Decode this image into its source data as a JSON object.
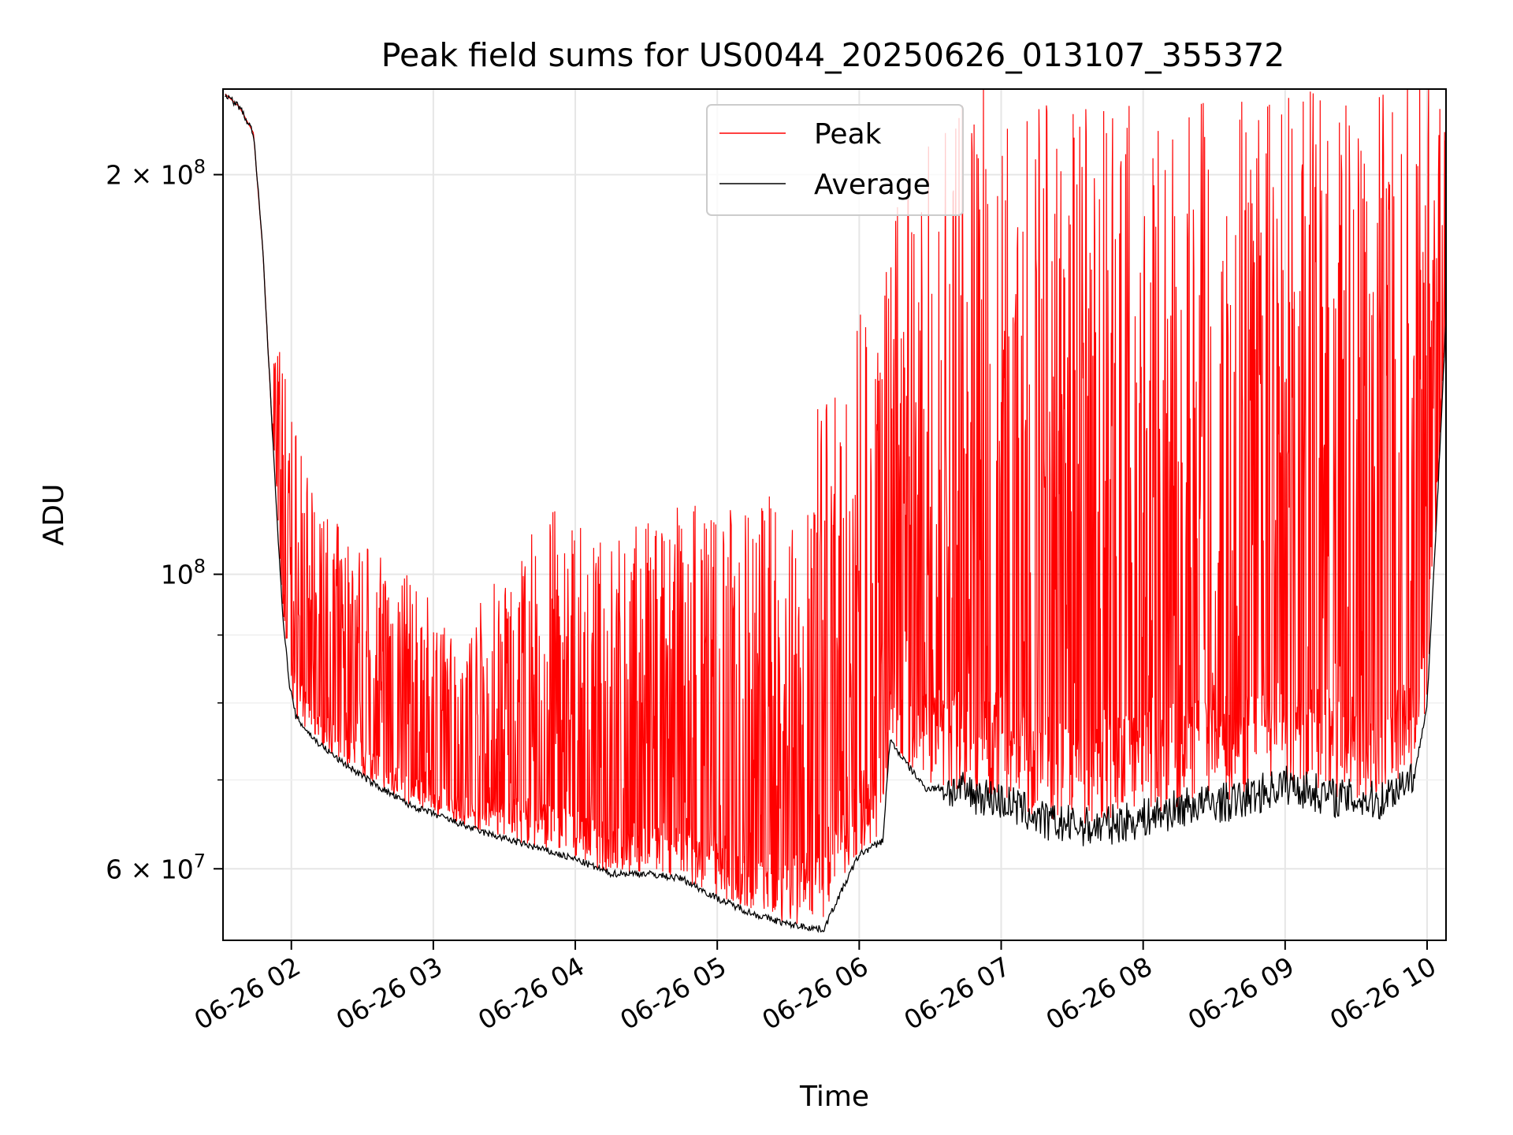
{
  "chart_data": {
    "type": "line",
    "title": "Peak field sums for US0044_20250626_013107_355372",
    "xlabel": "Time",
    "ylabel": "ADU",
    "yscale": "log",
    "xlim": [
      "2025-06-26T01:31:07",
      "2025-06-26T10:08:00"
    ],
    "ylim": [
      53000000,
      232000000
    ],
    "grid": true,
    "legend": {
      "placement": "top-center",
      "entries": [
        "Peak",
        "Average"
      ]
    },
    "x_ticks": [
      {
        "value": "2025-06-26T02:00",
        "label": "06-26 02"
      },
      {
        "value": "2025-06-26T03:00",
        "label": "06-26 03"
      },
      {
        "value": "2025-06-26T04:00",
        "label": "06-26 04"
      },
      {
        "value": "2025-06-26T05:00",
        "label": "06-26 05"
      },
      {
        "value": "2025-06-26T06:00",
        "label": "06-26 06"
      },
      {
        "value": "2025-06-26T07:00",
        "label": "06-26 07"
      },
      {
        "value": "2025-06-26T08:00",
        "label": "06-26 08"
      },
      {
        "value": "2025-06-26T09:00",
        "label": "06-26 09"
      },
      {
        "value": "2025-06-26T10:00",
        "label": "06-26 10"
      }
    ],
    "y_ticks": [
      {
        "value": 60000000,
        "label": "6 × 10",
        "exp": "7"
      },
      {
        "value": 100000000,
        "label": "10",
        "exp": "8"
      },
      {
        "value": 200000000,
        "label": "2 × 10",
        "exp": "8"
      }
    ],
    "y_minor_ticks": [
      70000000,
      80000000,
      90000000
    ],
    "colors": {
      "Peak": "#ff0000",
      "Average": "#000000"
    },
    "series": [
      {
        "name": "Average",
        "x": [
          "2025-06-26T01:32",
          "2025-06-26T01:38",
          "2025-06-26T01:44",
          "2025-06-26T01:48",
          "2025-06-26T01:52",
          "2025-06-26T01:56",
          "2025-06-26T01:59",
          "2025-06-26T02:02",
          "2025-06-26T02:10",
          "2025-06-26T02:20",
          "2025-06-26T02:35",
          "2025-06-26T02:50",
          "2025-06-26T03:00",
          "2025-06-26T03:20",
          "2025-06-26T03:40",
          "2025-06-26T04:00",
          "2025-06-26T04:15",
          "2025-06-26T04:30",
          "2025-06-26T04:45",
          "2025-06-26T05:00",
          "2025-06-26T05:15",
          "2025-06-26T05:30",
          "2025-06-26T05:45",
          "2025-06-26T05:50",
          "2025-06-26T06:00",
          "2025-06-26T06:10",
          "2025-06-26T06:13",
          "2025-06-26T06:20",
          "2025-06-26T06:28",
          "2025-06-26T06:35",
          "2025-06-26T06:45",
          "2025-06-26T06:55",
          "2025-06-26T07:05",
          "2025-06-26T07:20",
          "2025-06-26T07:40",
          "2025-06-26T08:00",
          "2025-06-26T08:20",
          "2025-06-26T08:40",
          "2025-06-26T09:00",
          "2025-06-26T09:20",
          "2025-06-26T09:40",
          "2025-06-26T09:55",
          "2025-06-26T10:00",
          "2025-06-26T10:04",
          "2025-06-26T10:08"
        ],
        "y": [
          230000000,
          225000000,
          215000000,
          175000000,
          128000000,
          95000000,
          83000000,
          78000000,
          75000000,
          72500000,
          69500000,
          67000000,
          66000000,
          64000000,
          62500000,
          61000000,
          59500000,
          59500000,
          59000000,
          57000000,
          55500000,
          54500000,
          54000000,
          56500000,
          61500000,
          63000000,
          75000000,
          72000000,
          69000000,
          69000000,
          68500000,
          68000000,
          67000000,
          65000000,
          64500000,
          65500000,
          67000000,
          67500000,
          69500000,
          68000000,
          67500000,
          71000000,
          80000000,
          110000000,
          155000000
        ]
      },
      {
        "name": "Peak",
        "x": [
          "2025-06-26T01:32",
          "2025-06-26T01:44",
          "2025-06-26T01:52",
          "2025-06-26T02:10",
          "2025-06-26T02:30",
          "2025-06-26T02:50",
          "2025-06-26T03:10",
          "2025-06-26T03:30",
          "2025-06-26T03:50",
          "2025-06-26T04:10",
          "2025-06-26T04:30",
          "2025-06-26T04:50",
          "2025-06-26T05:10",
          "2025-06-26T05:30",
          "2025-06-26T05:50",
          "2025-06-26T06:05",
          "2025-06-26T06:20",
          "2025-06-26T06:35",
          "2025-06-26T06:50",
          "2025-06-26T07:05",
          "2025-06-26T07:20",
          "2025-06-26T07:40",
          "2025-06-26T08:00",
          "2025-06-26T08:20",
          "2025-06-26T08:40",
          "2025-06-26T09:00",
          "2025-06-26T09:20",
          "2025-06-26T09:40",
          "2025-06-26T09:55",
          "2025-06-26T10:04",
          "2025-06-26T10:08"
        ],
        "y": [
          230000000,
          215000000,
          128000000,
          90000000,
          85000000,
          80000000,
          72000000,
          82000000,
          90000000,
          85000000,
          88000000,
          92000000,
          90000000,
          95000000,
          115000000,
          135000000,
          160000000,
          175000000,
          190000000,
          190000000,
          180000000,
          180000000,
          185000000,
          180000000,
          185000000,
          185000000,
          185000000,
          190000000,
          190000000,
          185000000,
          180000000
        ]
      }
    ]
  }
}
